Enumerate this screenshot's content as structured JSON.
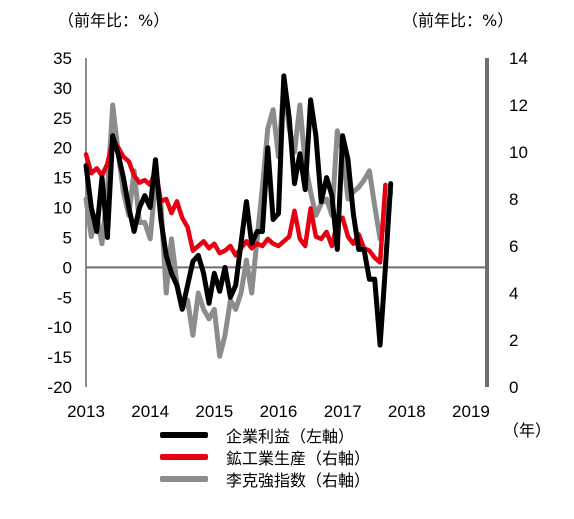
{
  "chart_data": {
    "type": "line",
    "left_unit": "（前年比：%）",
    "right_unit": "（前年比：%）",
    "x_unit": "（年）",
    "x_ticks": [
      "2013",
      "2014",
      "2015",
      "2016",
      "2017",
      "2018",
      "2019"
    ],
    "x_range": [
      2013.0,
      2019.25
    ],
    "y_left": {
      "range": [
        -20,
        35
      ],
      "ticks": [
        "35",
        "30",
        "25",
        "20",
        "15",
        "10",
        "5",
        "0",
        "-5",
        "-10",
        "-15",
        "-20"
      ]
    },
    "y_right": {
      "range": [
        0,
        14
      ],
      "ticks": [
        "14",
        "12",
        "10",
        "8",
        "6",
        "4",
        "2",
        "0"
      ]
    },
    "series": [
      {
        "name": "企業利益（左軸）",
        "axis": "left",
        "color": "#000000",
        "start": 2013.0,
        "step": 0.08333,
        "values": [
          17,
          10,
          6,
          15,
          5,
          22,
          19,
          15,
          10,
          6,
          10,
          12,
          10,
          18,
          8,
          2,
          -1,
          -3,
          -7,
          -3,
          1,
          2,
          -1,
          -6,
          -1,
          -4,
          0,
          -5,
          -3,
          4,
          11,
          4,
          6,
          6,
          20,
          8,
          9,
          32,
          25,
          14,
          19,
          13,
          28,
          22,
          11,
          15,
          12,
          3,
          22,
          18,
          9,
          3,
          3,
          -2,
          -2,
          -13,
          0,
          14
        ]
      },
      {
        "name": "鉱工業生産（右軸）",
        "axis": "right",
        "color": "#e60012",
        "start": 2013.0,
        "step": 0.08333,
        "values": [
          9.9,
          9.1,
          9.3,
          9.0,
          9.5,
          10.5,
          10.2,
          9.8,
          9.6,
          9.0,
          8.7,
          8.8,
          8.6,
          9.2,
          7.9,
          8.0,
          7.4,
          7.9,
          7.2,
          6.8,
          5.8,
          6.0,
          6.2,
          5.9,
          6.1,
          5.7,
          5.8,
          6.0,
          5.6,
          5.9,
          6.2,
          5.9,
          6.1,
          6.0,
          6.3,
          6.1,
          6.0,
          6.2,
          6.4,
          7.5,
          6.3,
          6.0,
          7.6,
          6.4,
          6.3,
          6.6,
          6.0,
          7.0,
          7.2,
          6.4,
          6.1,
          6.5,
          5.9,
          5.8,
          5.5,
          5.3,
          8.6
        ]
      },
      {
        "name": "李克強指数（右軸）",
        "axis": "right",
        "color": "#8c8c8c",
        "start": 2013.0,
        "step": 0.08333,
        "values": [
          8.0,
          6.4,
          7.3,
          6.1,
          8.3,
          12.0,
          10.0,
          8.3,
          7.3,
          9.2,
          7.0,
          7.0,
          6.3,
          8.8,
          7.8,
          4.0,
          6.3,
          4.4,
          3.3,
          3.7,
          2.2,
          4.0,
          3.3,
          2.9,
          3.3,
          1.3,
          2.2,
          3.7,
          3.3,
          4.0,
          5.4,
          4.0,
          6.3,
          8.5,
          11.0,
          11.8,
          9.8,
          12.9,
          11.0,
          10.0,
          12.0,
          9.5,
          8.3,
          7.3,
          7.8,
          8.0,
          7.3,
          10.9,
          10.0,
          8.0,
          8.3,
          8.5,
          8.8,
          9.2,
          7.7,
          6.3,
          7.0,
          8.3
        ]
      }
    ]
  }
}
